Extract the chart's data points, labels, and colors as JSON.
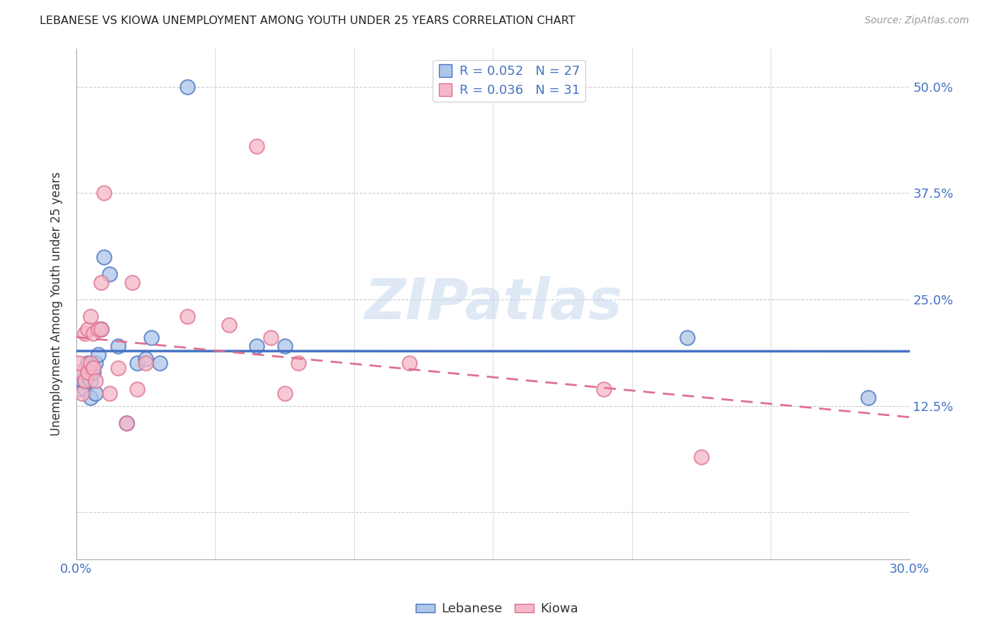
{
  "title": "LEBANESE VS KIOWA UNEMPLOYMENT AMONG YOUTH UNDER 25 YEARS CORRELATION CHART",
  "source": "Source: ZipAtlas.com",
  "ylabel": "Unemployment Among Youth under 25 years",
  "y_ticks": [
    0.0,
    0.125,
    0.25,
    0.375,
    0.5
  ],
  "y_tick_labels": [
    "",
    "12.5%",
    "25.0%",
    "37.5%",
    "50.0%"
  ],
  "x_min": 0.0,
  "x_max": 0.3,
  "y_min": -0.055,
  "y_max": 0.545,
  "legend_r_lebanese": "R = 0.052",
  "legend_n_lebanese": "N = 27",
  "legend_r_kiowa": "R = 0.036",
  "legend_n_kiowa": "N = 31",
  "lebanese_color": "#aec6e8",
  "kiowa_color": "#f5b8c8",
  "lebanese_edge_color": "#4472c4",
  "kiowa_edge_color": "#e07090",
  "lebanese_line_color": "#4472c4",
  "kiowa_line_color": "#e07090",
  "watermark": "ZIPatlas",
  "lebanese_x": [
    0.001,
    0.002,
    0.002,
    0.003,
    0.003,
    0.004,
    0.004,
    0.005,
    0.005,
    0.006,
    0.007,
    0.007,
    0.008,
    0.009,
    0.01,
    0.012,
    0.015,
    0.018,
    0.022,
    0.025,
    0.027,
    0.03,
    0.04,
    0.065,
    0.075,
    0.22,
    0.285
  ],
  "lebanese_y": [
    0.145,
    0.155,
    0.165,
    0.145,
    0.155,
    0.16,
    0.175,
    0.135,
    0.155,
    0.165,
    0.14,
    0.175,
    0.185,
    0.215,
    0.3,
    0.28,
    0.195,
    0.105,
    0.175,
    0.18,
    0.205,
    0.175,
    0.5,
    0.195,
    0.195,
    0.205,
    0.135
  ],
  "kiowa_x": [
    0.001,
    0.001,
    0.002,
    0.003,
    0.003,
    0.004,
    0.004,
    0.005,
    0.005,
    0.006,
    0.006,
    0.007,
    0.008,
    0.009,
    0.009,
    0.01,
    0.012,
    0.015,
    0.018,
    0.02,
    0.022,
    0.025,
    0.04,
    0.055,
    0.065,
    0.07,
    0.075,
    0.08,
    0.12,
    0.19,
    0.225
  ],
  "kiowa_y": [
    0.165,
    0.175,
    0.14,
    0.155,
    0.21,
    0.215,
    0.165,
    0.23,
    0.175,
    0.17,
    0.21,
    0.155,
    0.215,
    0.215,
    0.27,
    0.375,
    0.14,
    0.17,
    0.105,
    0.27,
    0.145,
    0.175,
    0.23,
    0.22,
    0.43,
    0.205,
    0.14,
    0.175,
    0.175,
    0.145,
    0.065
  ],
  "background_color": "#ffffff",
  "grid_color": "#cccccc"
}
